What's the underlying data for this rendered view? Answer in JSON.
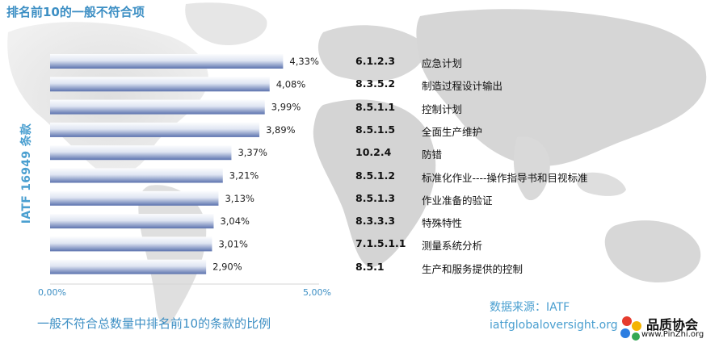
{
  "title": "排名前10的一般不符合项",
  "caption": "一般不符合总数量中排名前10的条款的比例",
  "source_label": "数据来源：IATF",
  "source_url": "iatfglobaloversight.org",
  "logo": {
    "name": "品质协会",
    "url": "www.PinZhi.org"
  },
  "colors": {
    "bar_dark": "#5b72ae",
    "bar_light": "#eef1f8",
    "accent": "#3d8fc4"
  },
  "chart_data": {
    "type": "bar",
    "orientation": "horizontal",
    "ylabel": "IATF 16949 条款",
    "xlabel": "",
    "xlim": [
      0,
      5
    ],
    "x_ticks": [
      "0,00%",
      "5,00%"
    ],
    "grid": false,
    "categories": [
      "6.1.2.3",
      "8.3.5.2",
      "8.5.1.1",
      "8.5.1.5",
      "10.2.4",
      "8.5.1.2",
      "8.5.1.3",
      "8.3.3.3",
      "7.1.5.1.1",
      "8.5.1"
    ],
    "clause_names": [
      "应急计划",
      "制造过程设计输出",
      "控制计划",
      "全面生产维护",
      "防错",
      "标准化作业----操作指导书和目视标准",
      "作业准备的验证",
      "特殊特性",
      "测量系统分析",
      "生产和服务提供的控制"
    ],
    "values": [
      4.33,
      4.08,
      3.99,
      3.89,
      3.37,
      3.21,
      3.13,
      3.04,
      3.01,
      2.9
    ],
    "value_labels": [
      "4,33%",
      "4,08%",
      "3,99%",
      "3,89%",
      "3,37%",
      "3,21%",
      "3,13%",
      "3,04%",
      "3,01%",
      "2,90%"
    ]
  }
}
